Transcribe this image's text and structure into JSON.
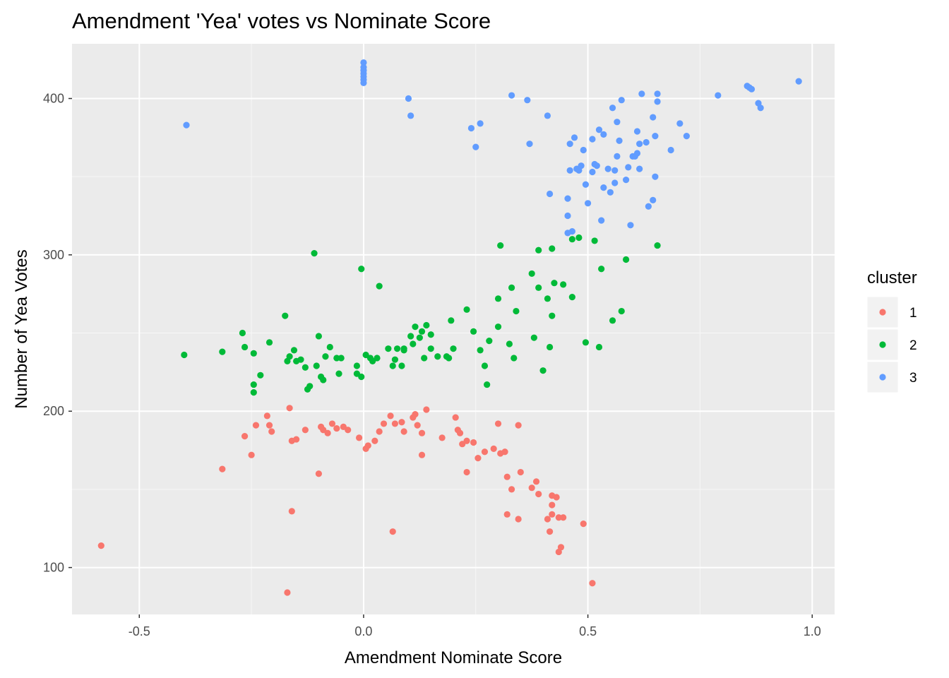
{
  "chart_data": {
    "type": "scatter",
    "title": "Amendment 'Yea' votes vs Nominate Score",
    "xlabel": "Amendment Nominate Score",
    "ylabel": "Number of Yea Votes",
    "xlim": [
      -0.65,
      1.05
    ],
    "ylim": [
      70,
      435
    ],
    "x_ticks": [
      -0.5,
      0.0,
      0.5,
      1.0
    ],
    "x_tick_labels": [
      "-0.5",
      "0.0",
      "0.5",
      "1.0"
    ],
    "y_ticks": [
      100,
      200,
      300,
      400
    ],
    "y_tick_labels": [
      "100",
      "200",
      "300",
      "400"
    ],
    "grid": true,
    "legend": {
      "title": "cluster",
      "position": "right"
    },
    "series": [
      {
        "name": "1",
        "color": "#F8766D",
        "points": [
          [
            -0.585,
            114
          ],
          [
            -0.315,
            163
          ],
          [
            -0.265,
            184
          ],
          [
            -0.25,
            172
          ],
          [
            -0.24,
            191
          ],
          [
            -0.215,
            197
          ],
          [
            -0.21,
            191
          ],
          [
            -0.205,
            187
          ],
          [
            -0.165,
            202
          ],
          [
            -0.16,
            181
          ],
          [
            -0.15,
            182
          ],
          [
            -0.13,
            188
          ],
          [
            -0.16,
            136
          ],
          [
            -0.17,
            84
          ],
          [
            -0.1,
            160
          ],
          [
            -0.095,
            190
          ],
          [
            -0.09,
            188
          ],
          [
            -0.08,
            186
          ],
          [
            -0.07,
            192
          ],
          [
            -0.06,
            189
          ],
          [
            -0.045,
            190
          ],
          [
            -0.035,
            188
          ],
          [
            -0.01,
            183
          ],
          [
            0.005,
            176
          ],
          [
            0.01,
            178
          ],
          [
            0.025,
            181
          ],
          [
            0.035,
            187
          ],
          [
            0.045,
            192
          ],
          [
            0.06,
            197
          ],
          [
            0.065,
            123
          ],
          [
            0.07,
            192
          ],
          [
            0.085,
            193
          ],
          [
            0.09,
            187
          ],
          [
            0.11,
            196
          ],
          [
            0.115,
            198
          ],
          [
            0.12,
            191
          ],
          [
            0.13,
            186
          ],
          [
            0.13,
            172
          ],
          [
            0.14,
            201
          ],
          [
            0.175,
            183
          ],
          [
            0.205,
            196
          ],
          [
            0.21,
            188
          ],
          [
            0.215,
            186
          ],
          [
            0.22,
            179
          ],
          [
            0.23,
            181
          ],
          [
            0.23,
            161
          ],
          [
            0.245,
            180
          ],
          [
            0.255,
            170
          ],
          [
            0.27,
            174
          ],
          [
            0.29,
            176
          ],
          [
            0.3,
            192
          ],
          [
            0.305,
            173
          ],
          [
            0.315,
            174
          ],
          [
            0.32,
            158
          ],
          [
            0.33,
            150
          ],
          [
            0.345,
            191
          ],
          [
            0.35,
            161
          ],
          [
            0.345,
            131
          ],
          [
            0.32,
            134
          ],
          [
            0.375,
            151
          ],
          [
            0.385,
            155
          ],
          [
            0.39,
            147
          ],
          [
            0.41,
            131
          ],
          [
            0.415,
            123
          ],
          [
            0.42,
            140
          ],
          [
            0.42,
            134
          ],
          [
            0.42,
            146
          ],
          [
            0.43,
            145
          ],
          [
            0.435,
            132
          ],
          [
            0.445,
            132
          ],
          [
            0.435,
            110
          ],
          [
            0.44,
            113
          ],
          [
            0.49,
            128
          ],
          [
            0.51,
            90
          ]
        ]
      },
      {
        "name": "2",
        "color": "#00BA38",
        "points": [
          [
            -0.4,
            236
          ],
          [
            -0.315,
            238
          ],
          [
            -0.27,
            250
          ],
          [
            -0.265,
            241
          ],
          [
            -0.245,
            237
          ],
          [
            -0.245,
            217
          ],
          [
            -0.245,
            212
          ],
          [
            -0.23,
            223
          ],
          [
            -0.21,
            244
          ],
          [
            -0.175,
            261
          ],
          [
            -0.17,
            232
          ],
          [
            -0.165,
            235
          ],
          [
            -0.155,
            239
          ],
          [
            -0.15,
            232
          ],
          [
            -0.14,
            233
          ],
          [
            -0.13,
            228
          ],
          [
            -0.12,
            216
          ],
          [
            -0.125,
            214
          ],
          [
            -0.11,
            301
          ],
          [
            -0.105,
            229
          ],
          [
            -0.1,
            248
          ],
          [
            -0.095,
            222
          ],
          [
            -0.09,
            220
          ],
          [
            -0.085,
            235
          ],
          [
            -0.075,
            241
          ],
          [
            -0.06,
            234
          ],
          [
            -0.05,
            234
          ],
          [
            -0.055,
            224
          ],
          [
            -0.015,
            229
          ],
          [
            -0.015,
            224
          ],
          [
            -0.005,
            291
          ],
          [
            -0.005,
            222
          ],
          [
            0.005,
            236
          ],
          [
            0.015,
            234
          ],
          [
            0.02,
            232
          ],
          [
            0.03,
            234
          ],
          [
            0.035,
            280
          ],
          [
            0.055,
            240
          ],
          [
            0.065,
            229
          ],
          [
            0.07,
            233
          ],
          [
            0.075,
            240
          ],
          [
            0.085,
            229
          ],
          [
            0.09,
            240
          ],
          [
            0.09,
            239
          ],
          [
            0.105,
            248
          ],
          [
            0.11,
            243
          ],
          [
            0.115,
            254
          ],
          [
            0.125,
            247
          ],
          [
            0.13,
            251
          ],
          [
            0.135,
            234
          ],
          [
            0.14,
            255
          ],
          [
            0.15,
            249
          ],
          [
            0.15,
            240
          ],
          [
            0.165,
            235
          ],
          [
            0.185,
            235
          ],
          [
            0.19,
            234
          ],
          [
            0.195,
            258
          ],
          [
            0.2,
            240
          ],
          [
            0.23,
            265
          ],
          [
            0.245,
            251
          ],
          [
            0.26,
            239
          ],
          [
            0.27,
            229
          ],
          [
            0.275,
            217
          ],
          [
            0.28,
            245
          ],
          [
            0.3,
            272
          ],
          [
            0.3,
            254
          ],
          [
            0.305,
            306
          ],
          [
            0.325,
            243
          ],
          [
            0.33,
            279
          ],
          [
            0.335,
            234
          ],
          [
            0.34,
            264
          ],
          [
            0.375,
            288
          ],
          [
            0.38,
            247
          ],
          [
            0.39,
            279
          ],
          [
            0.39,
            303
          ],
          [
            0.4,
            226
          ],
          [
            0.41,
            272
          ],
          [
            0.415,
            241
          ],
          [
            0.42,
            261
          ],
          [
            0.42,
            304
          ],
          [
            0.425,
            282
          ],
          [
            0.445,
            281
          ],
          [
            0.465,
            273
          ],
          [
            0.465,
            310
          ],
          [
            0.48,
            311
          ],
          [
            0.495,
            244
          ],
          [
            0.515,
            309
          ],
          [
            0.525,
            241
          ],
          [
            0.53,
            291
          ],
          [
            0.555,
            258
          ],
          [
            0.575,
            264
          ],
          [
            0.585,
            297
          ],
          [
            0.655,
            306
          ]
        ]
      },
      {
        "name": "3",
        "color": "#619CFF",
        "points": [
          [
            -0.395,
            383
          ],
          [
            0.0,
            423
          ],
          [
            0.0,
            420
          ],
          [
            0.0,
            418
          ],
          [
            0.0,
            416
          ],
          [
            0.0,
            414
          ],
          [
            0.0,
            412
          ],
          [
            0.0,
            410
          ],
          [
            0.1,
            400
          ],
          [
            0.105,
            389
          ],
          [
            0.24,
            381
          ],
          [
            0.25,
            369
          ],
          [
            0.26,
            384
          ],
          [
            0.33,
            402
          ],
          [
            0.365,
            399
          ],
          [
            0.37,
            371
          ],
          [
            0.41,
            389
          ],
          [
            0.415,
            339
          ],
          [
            0.455,
            336
          ],
          [
            0.455,
            325
          ],
          [
            0.455,
            314
          ],
          [
            0.46,
            354
          ],
          [
            0.46,
            371
          ],
          [
            0.465,
            315
          ],
          [
            0.47,
            375
          ],
          [
            0.475,
            355
          ],
          [
            0.48,
            354
          ],
          [
            0.485,
            357
          ],
          [
            0.49,
            367
          ],
          [
            0.495,
            345
          ],
          [
            0.5,
            333
          ],
          [
            0.51,
            353
          ],
          [
            0.51,
            374
          ],
          [
            0.515,
            358
          ],
          [
            0.52,
            357
          ],
          [
            0.525,
            380
          ],
          [
            0.53,
            322
          ],
          [
            0.535,
            377
          ],
          [
            0.535,
            343
          ],
          [
            0.545,
            355
          ],
          [
            0.55,
            340
          ],
          [
            0.555,
            394
          ],
          [
            0.56,
            354
          ],
          [
            0.56,
            346
          ],
          [
            0.565,
            385
          ],
          [
            0.565,
            363
          ],
          [
            0.57,
            373
          ],
          [
            0.575,
            399
          ],
          [
            0.585,
            348
          ],
          [
            0.59,
            356
          ],
          [
            0.595,
            319
          ],
          [
            0.6,
            363
          ],
          [
            0.605,
            363
          ],
          [
            0.61,
            365
          ],
          [
            0.61,
            379
          ],
          [
            0.615,
            355
          ],
          [
            0.62,
            403
          ],
          [
            0.615,
            371
          ],
          [
            0.63,
            372
          ],
          [
            0.635,
            331
          ],
          [
            0.645,
            388
          ],
          [
            0.645,
            335
          ],
          [
            0.65,
            376
          ],
          [
            0.65,
            350
          ],
          [
            0.655,
            403
          ],
          [
            0.655,
            398
          ],
          [
            0.685,
            367
          ],
          [
            0.705,
            384
          ],
          [
            0.72,
            376
          ],
          [
            0.79,
            402
          ],
          [
            0.855,
            408
          ],
          [
            0.86,
            407
          ],
          [
            0.865,
            406
          ],
          [
            0.88,
            397
          ],
          [
            0.885,
            394
          ],
          [
            0.97,
            411
          ]
        ]
      }
    ]
  }
}
